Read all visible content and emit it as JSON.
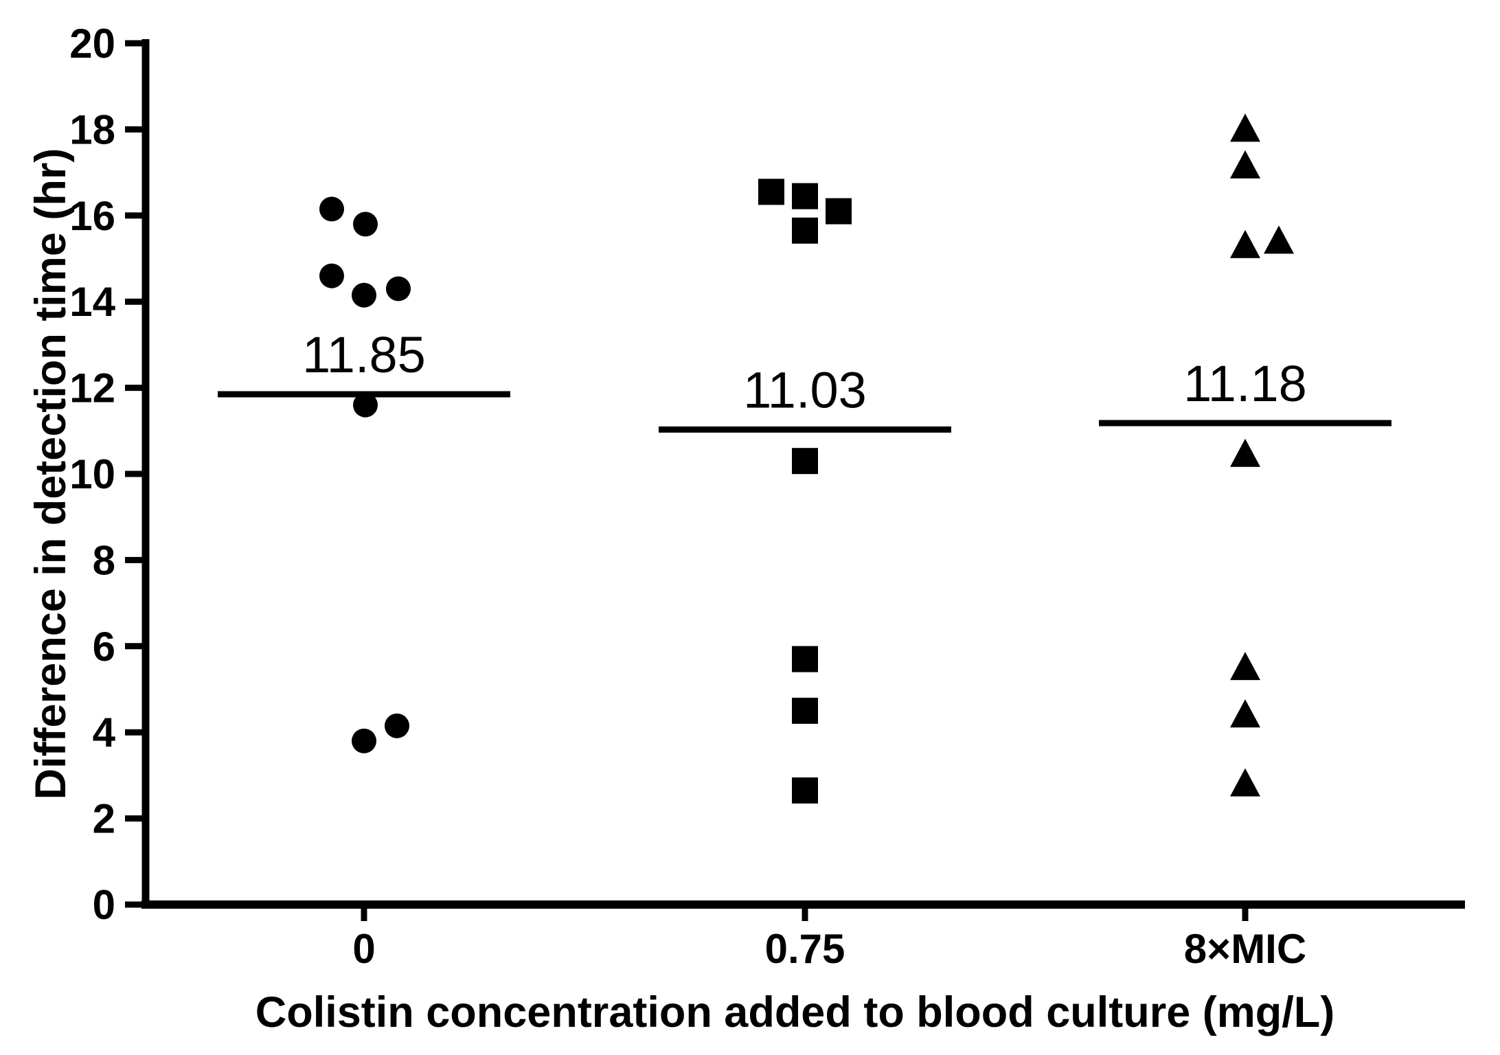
{
  "figure": {
    "background": "#ffffff",
    "ink_color": "#000000"
  },
  "chart_data": {
    "type": "scatter",
    "title": "",
    "xlabel": "Colistin concentration added to blood culture (mg/L)",
    "ylabel": "Difference in detection time (hr)",
    "ylim": [
      0,
      20
    ],
    "ytick_step": 2,
    "ytick_labels": [
      "0",
      "2",
      "4",
      "6",
      "8",
      "10",
      "12",
      "14",
      "16",
      "18",
      "20"
    ],
    "grid": false,
    "legend_position": "none",
    "marker_color": "#000000",
    "categories": [
      "0",
      "0.75",
      "8×MIC"
    ],
    "groups": [
      {
        "category": "0",
        "marker": "circle",
        "mean": 11.85,
        "mean_label": "11.85",
        "points": [
          {
            "dx": -47,
            "y": 16.15
          },
          {
            "dx": 2,
            "y": 15.8
          },
          {
            "dx": -47,
            "y": 14.6
          },
          {
            "dx": 0,
            "y": 14.15
          },
          {
            "dx": 50,
            "y": 14.3
          },
          {
            "dx": 2,
            "y": 11.6
          },
          {
            "dx": 0,
            "y": 3.8
          },
          {
            "dx": 48,
            "y": 4.15
          }
        ]
      },
      {
        "category": "0.75",
        "marker": "square",
        "mean": 11.03,
        "mean_label": "11.03",
        "points": [
          {
            "dx": -49,
            "y": 16.55
          },
          {
            "dx": 0,
            "y": 16.45
          },
          {
            "dx": 0,
            "y": 15.65
          },
          {
            "dx": 49,
            "y": 16.1
          },
          {
            "dx": 0,
            "y": 10.3
          },
          {
            "dx": 0,
            "y": 5.7
          },
          {
            "dx": 0,
            "y": 4.5
          },
          {
            "dx": 0,
            "y": 2.65
          }
        ]
      },
      {
        "category": "8×MIC",
        "marker": "triangle",
        "mean": 11.18,
        "mean_label": "11.18",
        "points": [
          {
            "dx": 0,
            "y": 18.0
          },
          {
            "dx": 0,
            "y": 17.15
          },
          {
            "dx": 0,
            "y": 15.3
          },
          {
            "dx": 49,
            "y": 15.4
          },
          {
            "dx": 0,
            "y": 10.45
          },
          {
            "dx": 0,
            "y": 5.5
          },
          {
            "dx": 0,
            "y": 4.4
          },
          {
            "dx": 0,
            "y": 2.8
          }
        ]
      }
    ]
  }
}
